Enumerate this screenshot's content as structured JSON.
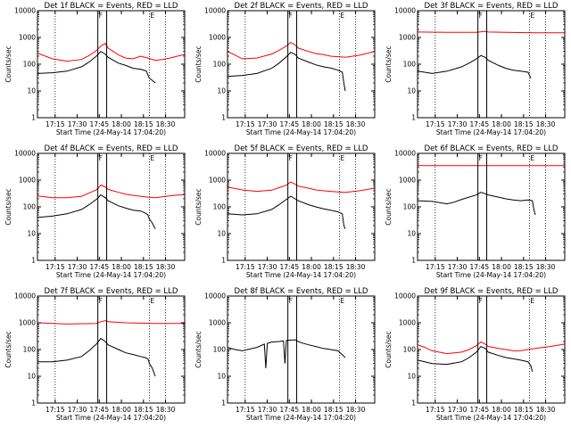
{
  "chart_data": [
    {
      "type": "line",
      "title": "Det 1f BLACK = Events, RED = LLD",
      "xlabel": "Start Time (24-May-14 17:04:20)",
      "ylabel": "Counts/sec",
      "yscale": "log",
      "ylim": [
        1,
        10000
      ],
      "xlim": [
        0,
        100
      ],
      "xticks": [
        "17:15",
        "17:30",
        "17:45",
        "18:00",
        "18:15",
        "18:30"
      ],
      "yticks": [
        "1",
        "10",
        "100",
        "1000",
        "10000"
      ],
      "markers": [
        "F",
        "E"
      ],
      "series": [
        {
          "color": "#000000",
          "x": [
            0,
            10,
            20,
            30,
            35,
            40,
            43,
            46,
            48,
            55,
            60,
            65,
            70,
            73,
            74,
            75,
            76,
            78,
            80
          ],
          "y": [
            45,
            48,
            55,
            80,
            120,
            200,
            300,
            240,
            180,
            110,
            90,
            70,
            65,
            58,
            55,
            40,
            30,
            25,
            20
          ]
        },
        {
          "color": "#ff0000",
          "x": [
            0,
            10,
            20,
            30,
            35,
            40,
            43,
            46,
            48,
            55,
            60,
            65,
            70,
            75,
            80,
            85,
            90,
            95,
            100
          ],
          "y": [
            260,
            160,
            130,
            150,
            210,
            320,
            480,
            600,
            400,
            220,
            170,
            160,
            200,
            170,
            140,
            150,
            170,
            200,
            230
          ]
        }
      ]
    },
    {
      "type": "line",
      "title": "Det 2f BLACK = Events, RED = LLD",
      "xlabel": "Start Time (24-May-14 17:04:20)",
      "ylabel": "Counts/sec",
      "yscale": "log",
      "ylim": [
        1,
        10000
      ],
      "xlim": [
        0,
        100
      ],
      "xticks": [
        "17:15",
        "17:30",
        "17:45",
        "18:00",
        "18:15",
        "18:30"
      ],
      "yticks": [
        "1",
        "10",
        "100",
        "1000",
        "10000"
      ],
      "markers": [
        "F",
        "E"
      ],
      "series": [
        {
          "color": "#000000",
          "x": [
            0,
            10,
            20,
            30,
            35,
            40,
            43,
            46,
            48,
            55,
            60,
            65,
            70,
            75,
            78,
            79,
            80
          ],
          "y": [
            35,
            38,
            45,
            70,
            110,
            190,
            280,
            230,
            170,
            120,
            95,
            80,
            72,
            60,
            50,
            20,
            10
          ]
        },
        {
          "color": "#ff0000",
          "x": [
            0,
            5,
            10,
            20,
            30,
            35,
            40,
            43,
            46,
            48,
            55,
            60,
            65,
            70,
            75,
            80,
            90,
            100
          ],
          "y": [
            300,
            220,
            160,
            170,
            240,
            330,
            480,
            650,
            520,
            400,
            300,
            250,
            230,
            200,
            190,
            180,
            220,
            300
          ]
        }
      ]
    },
    {
      "type": "line",
      "title": "Det 3f BLACK = Events, RED = LLD",
      "xlabel": "Start Time (24-May-14 17:04:20)",
      "ylabel": "Counts/sec",
      "yscale": "log",
      "ylim": [
        1,
        10000
      ],
      "xlim": [
        0,
        100
      ],
      "xticks": [
        "17:15",
        "17:30",
        "17:45",
        "18:00",
        "18:15",
        "18:30"
      ],
      "yticks": [
        "1",
        "10",
        "100",
        "1000",
        "10000"
      ],
      "markers": [
        "F",
        "E"
      ],
      "series": [
        {
          "color": "#000000",
          "x": [
            0,
            10,
            20,
            30,
            35,
            40,
            43,
            46,
            48,
            55,
            60,
            65,
            70,
            75,
            77
          ],
          "y": [
            55,
            45,
            55,
            80,
            110,
            160,
            210,
            180,
            140,
            90,
            70,
            60,
            55,
            50,
            30
          ]
        },
        {
          "color": "#ff0000",
          "x": [
            0,
            20,
            40,
            46,
            48,
            60,
            80,
            100
          ],
          "y": [
            1600,
            1550,
            1550,
            1700,
            1600,
            1550,
            1500,
            1500
          ]
        }
      ]
    },
    {
      "type": "line",
      "title": "Det 4f BLACK = Events, RED = LLD",
      "xlabel": "Start Time (24-May-14 17:04:20)",
      "ylabel": "Counts/sec",
      "yscale": "log",
      "ylim": [
        1,
        10000
      ],
      "xlim": [
        0,
        100
      ],
      "xticks": [
        "17:15",
        "17:30",
        "17:45",
        "18:00",
        "18:15",
        "18:30"
      ],
      "yticks": [
        "1",
        "10",
        "100",
        "1000",
        "10000"
      ],
      "markers": [
        "F",
        "E"
      ],
      "series": [
        {
          "color": "#000000",
          "x": [
            0,
            10,
            20,
            30,
            35,
            40,
            43,
            46,
            48,
            55,
            60,
            65,
            70,
            73,
            75,
            76,
            78,
            80
          ],
          "y": [
            40,
            45,
            55,
            80,
            120,
            190,
            280,
            220,
            170,
            110,
            90,
            75,
            70,
            60,
            50,
            35,
            25,
            15
          ]
        },
        {
          "color": "#ff0000",
          "x": [
            0,
            10,
            20,
            30,
            35,
            40,
            43,
            46,
            48,
            55,
            60,
            65,
            70,
            75,
            80,
            90,
            100
          ],
          "y": [
            260,
            220,
            220,
            250,
            330,
            430,
            650,
            560,
            450,
            350,
            300,
            270,
            250,
            230,
            220,
            260,
            290
          ]
        }
      ]
    },
    {
      "type": "line",
      "title": "Det 5f BLACK = Events, RED = LLD",
      "xlabel": "Start Time (24-May-14 17:04:20)",
      "ylabel": "Counts/sec",
      "yscale": "log",
      "ylim": [
        1,
        10000
      ],
      "xlim": [
        0,
        100
      ],
      "xticks": [
        "17:15",
        "17:30",
        "17:45",
        "18:00",
        "18:15",
        "18:30"
      ],
      "yticks": [
        "1",
        "10",
        "100",
        "1000",
        "10000"
      ],
      "markers": [
        "F",
        "E"
      ],
      "series": [
        {
          "color": "#000000",
          "x": [
            0,
            10,
            20,
            30,
            35,
            40,
            43,
            46,
            48,
            55,
            60,
            65,
            70,
            75,
            78,
            79,
            80
          ],
          "y": [
            55,
            50,
            55,
            80,
            120,
            190,
            250,
            200,
            170,
            120,
            100,
            85,
            75,
            65,
            55,
            20,
            15
          ]
        },
        {
          "color": "#ff0000",
          "x": [
            0,
            10,
            20,
            30,
            35,
            40,
            43,
            46,
            48,
            55,
            60,
            65,
            70,
            75,
            80,
            90,
            100
          ],
          "y": [
            550,
            430,
            380,
            420,
            520,
            650,
            850,
            700,
            600,
            500,
            430,
            400,
            380,
            360,
            350,
            400,
            500
          ]
        }
      ]
    },
    {
      "type": "line",
      "title": "Det 6f BLACK = Events, RED = LLD",
      "xlabel": "Start Time (24-May-14 17:04:20)",
      "ylabel": "Counts/sec",
      "yscale": "log",
      "ylim": [
        1,
        10000
      ],
      "xlim": [
        0,
        100
      ],
      "xticks": [
        "17:15",
        "17:30",
        "17:45",
        "18:00",
        "18:15",
        "18:30"
      ],
      "yticks": [
        "1",
        "10",
        "100",
        "1000",
        "10000"
      ],
      "markers": [
        "F",
        "E"
      ],
      "series": [
        {
          "color": "#000000",
          "x": [
            0,
            10,
            20,
            25,
            30,
            40,
            43,
            46,
            48,
            55,
            60,
            65,
            70,
            75,
            78,
            79,
            80
          ],
          "y": [
            170,
            160,
            130,
            150,
            190,
            280,
            350,
            310,
            280,
            230,
            200,
            180,
            170,
            180,
            170,
            80,
            50
          ]
        },
        {
          "color": "#ff0000",
          "x": [
            0,
            100
          ],
          "y": [
            3500,
            3500
          ]
        }
      ]
    },
    {
      "type": "line",
      "title": "Det 7f BLACK = Events, RED = LLD",
      "xlabel": "Start Time (24-May-14 17:04:20)",
      "ylabel": "Counts/sec",
      "yscale": "log",
      "ylim": [
        1,
        10000
      ],
      "xlim": [
        0,
        100
      ],
      "xticks": [
        "17:15",
        "17:30",
        "17:45",
        "18:00",
        "18:15",
        "18:30"
      ],
      "yticks": [
        "1",
        "10",
        "100",
        "1000",
        "10000"
      ],
      "markers": [
        "F",
        "E"
      ],
      "series": [
        {
          "color": "#000000",
          "x": [
            0,
            10,
            20,
            30,
            35,
            40,
            43,
            46,
            48,
            55,
            60,
            65,
            70,
            73,
            75,
            76,
            78,
            80
          ],
          "y": [
            35,
            35,
            40,
            55,
            90,
            160,
            260,
            200,
            150,
            100,
            75,
            65,
            55,
            50,
            45,
            30,
            20,
            10
          ]
        },
        {
          "color": "#ff0000",
          "x": [
            0,
            20,
            40,
            43,
            46,
            48,
            60,
            80,
            100
          ],
          "y": [
            1000,
            900,
            950,
            1100,
            1200,
            1100,
            1000,
            950,
            950
          ]
        }
      ]
    },
    {
      "type": "line",
      "title": "Det 8f BLACK = Events, RED = LLD",
      "xlabel": "Start Time (24-May-14 17:04:20)",
      "ylabel": "Counts/sec",
      "yscale": "log",
      "ylim": [
        1,
        10000
      ],
      "xlim": [
        0,
        100
      ],
      "xticks": [
        "17:15",
        "17:30",
        "17:45",
        "18:00",
        "18:15",
        "18:30"
      ],
      "yticks": [
        "1",
        "10",
        "100",
        "1000",
        "10000"
      ],
      "markers": [
        "F",
        "E"
      ],
      "series": [
        {
          "color": "#000000",
          "x": [
            0,
            5,
            10,
            20,
            25,
            26,
            27,
            30,
            35,
            38,
            39,
            40,
            46,
            48,
            50,
            55,
            60,
            65,
            70,
            75,
            80
          ],
          "y": [
            120,
            100,
            90,
            120,
            160,
            20,
            170,
            190,
            200,
            210,
            30,
            220,
            230,
            200,
            180,
            150,
            130,
            110,
            100,
            90,
            50
          ]
        },
        {
          "color": "#ff0000",
          "x": [
            0,
            20,
            40,
            60,
            80,
            100
          ],
          "y": [
            11000,
            10800,
            11000,
            10800,
            10900,
            11000
          ]
        }
      ]
    },
    {
      "type": "line",
      "title": "Det 9f BLACK = Events, RED = LLD",
      "xlabel": "Start Time (24-May-14 17:04:20)",
      "ylabel": "Counts/sec",
      "yscale": "log",
      "ylim": [
        1,
        10000
      ],
      "xlim": [
        0,
        100
      ],
      "xticks": [
        "17:15",
        "17:30",
        "17:45",
        "18:00",
        "18:15",
        "18:30"
      ],
      "yticks": [
        "1",
        "10",
        "100",
        "1000",
        "10000"
      ],
      "markers": [
        "F",
        "E"
      ],
      "series": [
        {
          "color": "#000000",
          "x": [
            0,
            10,
            20,
            30,
            35,
            40,
            43,
            46,
            48,
            55,
            60,
            65,
            70,
            75,
            77,
            78
          ],
          "y": [
            40,
            30,
            28,
            35,
            50,
            80,
            130,
            110,
            80,
            60,
            50,
            45,
            40,
            35,
            25,
            15
          ]
        },
        {
          "color": "#ff0000",
          "x": [
            0,
            5,
            10,
            20,
            30,
            35,
            40,
            43,
            46,
            48,
            55,
            60,
            65,
            70,
            75,
            80,
            90,
            100
          ],
          "y": [
            150,
            120,
            90,
            70,
            80,
            100,
            140,
            190,
            160,
            130,
            110,
            100,
            90,
            90,
            100,
            110,
            130,
            160
          ]
        }
      ]
    }
  ]
}
